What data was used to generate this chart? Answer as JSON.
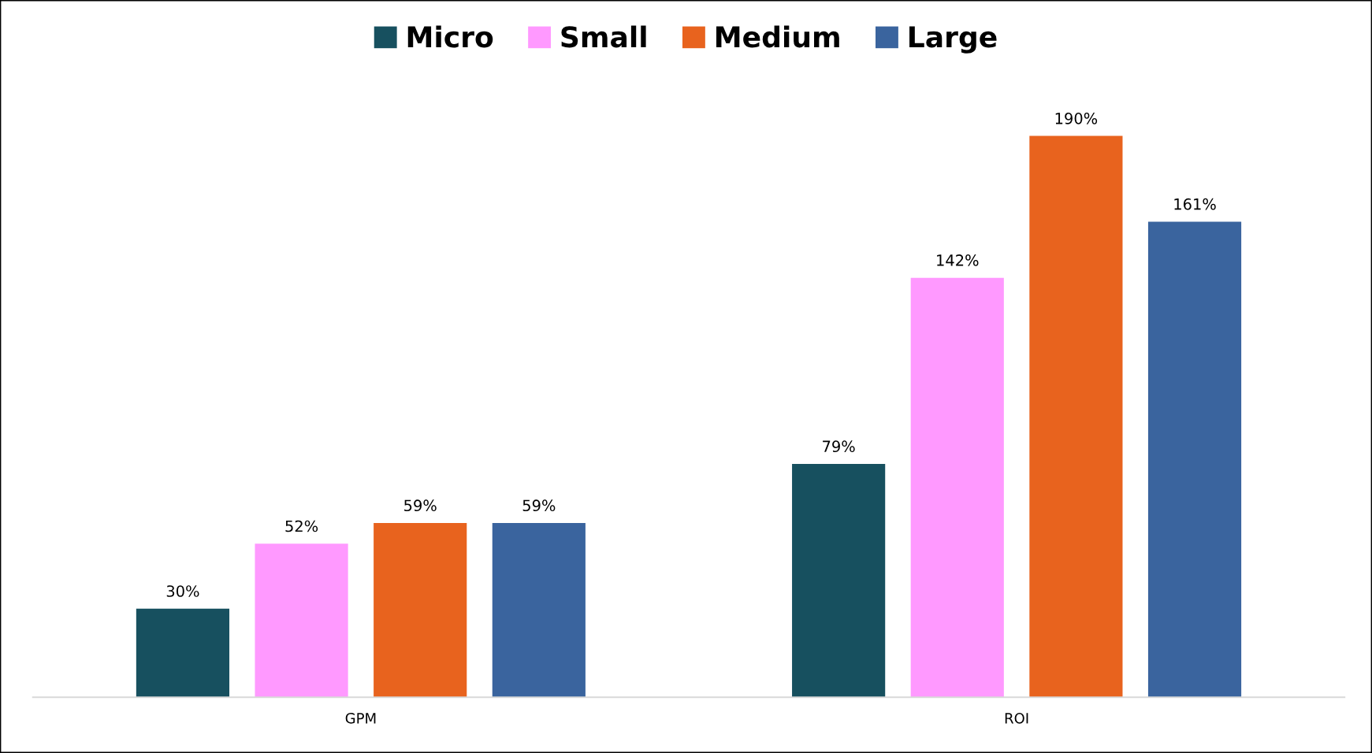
{
  "chart_data": {
    "type": "bar",
    "categories": [
      "GPM",
      "ROI"
    ],
    "series": [
      {
        "name": "Micro",
        "color": "#17505f",
        "values": [
          30,
          79
        ],
        "value_labels": [
          "30%",
          "79%"
        ]
      },
      {
        "name": "Small",
        "color": "#ff99ff",
        "values": [
          52,
          142
        ],
        "value_labels": [
          "52%",
          "142%"
        ]
      },
      {
        "name": "Medium",
        "color": "#e8631e",
        "values": [
          59,
          190
        ],
        "value_labels": [
          "59%",
          "190%"
        ]
      },
      {
        "name": "Large",
        "color": "#3a649e",
        "values": [
          59,
          161
        ],
        "value_labels": [
          "59%",
          "161%"
        ]
      }
    ],
    "legend": "top",
    "grid": false
  }
}
